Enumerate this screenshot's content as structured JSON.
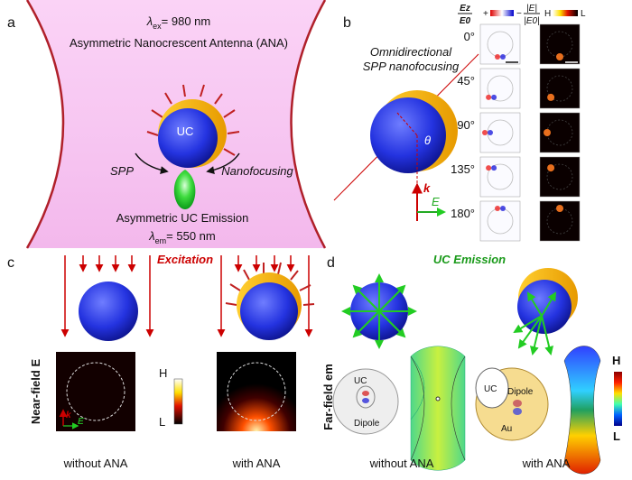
{
  "panel_a": {
    "label": "a",
    "excitation": {
      "symbol": "λ",
      "subscript": "ex",
      "rest": "= 980 nm"
    },
    "title": "Asymmetric Nanocrescent Antenna (ANA)",
    "particle": "UC",
    "left_label": "SPP",
    "right_label": "Nanofocusing",
    "emission_title": "Asymmetric UC Emission",
    "emission": {
      "symbol": "λ",
      "subscript": "em",
      "rest": "= 550 nm"
    }
  },
  "panel_b": {
    "label": "b",
    "caption_lines": [
      "Omnidirectional",
      "SPP nanofocusing"
    ],
    "angle_symbol": "θ",
    "k_symbol": "k",
    "e_symbol": "E",
    "ez_header": {
      "numerator": "Ez",
      "denominator": "E0",
      "plus": "+",
      "minus": "−"
    },
    "abs_header": {
      "numerator": "|E|",
      "denominator": "|E0|",
      "high": "H",
      "low": "L"
    },
    "angles": [
      "0°",
      "45°",
      "90°",
      "135°",
      "180°"
    ]
  },
  "panel_c": {
    "label": "c",
    "title": "Excitation",
    "row_label": "Near-field E",
    "high": "H",
    "low": "L",
    "k_symbol": "k",
    "e_symbol": "E",
    "captions": [
      "without ANA",
      "with ANA"
    ]
  },
  "panel_d": {
    "label": "d",
    "title": "UC Emission",
    "row_label": "Far-field em",
    "inset_left": {
      "particle": "UC",
      "dipole": "Dipole"
    },
    "inset_right": {
      "particle": "UC",
      "dipole": "Dipole",
      "shell": "Au"
    },
    "high": "H",
    "low": "L",
    "captions": [
      "without ANA",
      "with ANA"
    ]
  }
}
